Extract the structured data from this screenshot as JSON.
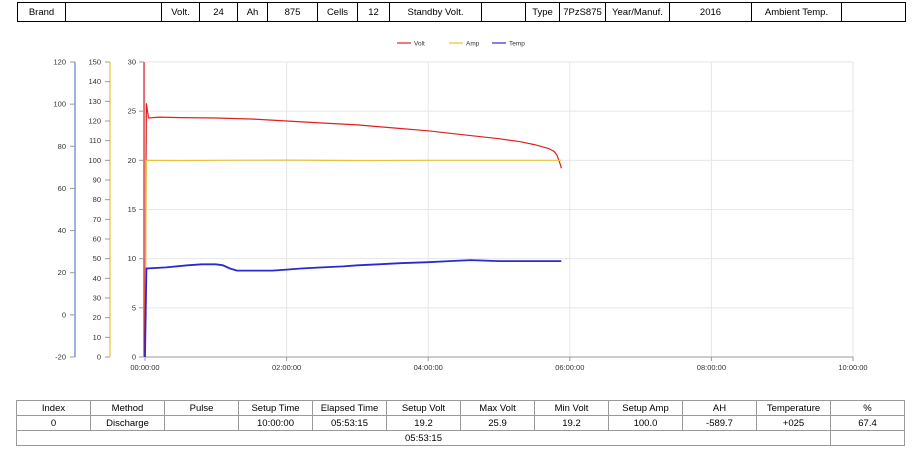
{
  "header": {
    "cells": [
      "Brand",
      "",
      "Volt.",
      "24",
      "Ah",
      "875",
      "Cells",
      "12",
      "Standby Volt.",
      "",
      "Type",
      "7PzS875",
      "Year/Manuf.",
      "2016",
      "Ambient Temp.",
      ""
    ]
  },
  "chart_data": {
    "type": "line",
    "legend": [
      "Volt",
      "Amp",
      "Temp"
    ],
    "legend_position": "top-center",
    "grid": true,
    "colors": {
      "Volt": "#e02020",
      "Amp": "#e8c23a",
      "Temp": "#2a2ad0"
    },
    "x_ticks": [
      "00:00:00",
      "02:00:00",
      "04:00:00",
      "06:00:00",
      "08:00:00",
      "10:00:00"
    ],
    "xlim_hours": [
      0,
      10
    ],
    "axes": [
      {
        "series": "Temp",
        "ticks": [
          "120",
          "100",
          "80",
          "60",
          "40",
          "20",
          "0",
          "-20"
        ],
        "ylim": [
          -20,
          120
        ]
      },
      {
        "series": "Amp",
        "ticks": [
          "150",
          "140",
          "130",
          "120",
          "110",
          "100",
          "90",
          "80",
          "70",
          "60",
          "50",
          "40",
          "30",
          "20",
          "10",
          "0"
        ],
        "ylim": [
          0,
          150
        ]
      },
      {
        "series": "Volt",
        "ticks": [
          "30",
          "25",
          "20",
          "15",
          "10",
          "5",
          "0"
        ],
        "ylim": [
          0,
          30
        ]
      }
    ],
    "series": [
      {
        "name": "Volt",
        "axis": 2,
        "x": [
          0,
          0.02,
          0.05,
          0.2,
          0.5,
          1.0,
          1.5,
          2.0,
          2.5,
          3.0,
          3.5,
          4.0,
          4.5,
          5.0,
          5.3,
          5.5,
          5.7,
          5.78,
          5.82,
          5.85,
          5.87,
          5.88
        ],
        "y": [
          0,
          25.8,
          24.3,
          24.4,
          24.35,
          24.3,
          24.2,
          24.0,
          23.8,
          23.6,
          23.3,
          23.0,
          22.6,
          22.2,
          21.9,
          21.6,
          21.2,
          20.9,
          20.5,
          19.9,
          19.5,
          19.2
        ]
      },
      {
        "name": "Amp",
        "axis": 1,
        "x": [
          0,
          0.02,
          0.5,
          1.0,
          2.0,
          3.0,
          4.0,
          5.0,
          5.88
        ],
        "y": [
          0,
          100.0,
          99.9,
          100.0,
          100.1,
          99.9,
          100.0,
          100.0,
          100.0
        ]
      },
      {
        "name": "Temp",
        "axis": 0,
        "x": [
          0,
          0.02,
          0.3,
          0.6,
          0.8,
          1.0,
          1.1,
          1.2,
          1.3,
          1.5,
          1.8,
          2.0,
          2.2,
          2.5,
          2.8,
          3.0,
          3.3,
          3.6,
          4.0,
          4.3,
          4.6,
          5.0,
          5.3,
          5.88
        ],
        "y": [
          -20,
          22,
          22.5,
          23.5,
          24,
          24,
          23.5,
          22,
          21,
          21,
          21,
          21.5,
          22,
          22.5,
          23,
          23.5,
          24,
          24.5,
          25,
          25.5,
          26,
          25.5,
          25.5,
          25.5
        ]
      }
    ]
  },
  "results": {
    "headers": [
      "Index",
      "Method",
      "Pulse",
      "Setup Time",
      "Elapsed Time",
      "Setup Volt",
      "Max Volt",
      "Min Volt",
      "Setup Amp",
      "AH",
      "Temperature",
      "%"
    ],
    "row": [
      "0",
      "Discharge",
      "",
      "10:00:00",
      "05:53:15",
      "19.2",
      "25.9",
      "19.2",
      "100.0",
      "-589.7",
      "+025",
      "67.4"
    ],
    "footer": [
      "05:53:15",
      ""
    ]
  }
}
